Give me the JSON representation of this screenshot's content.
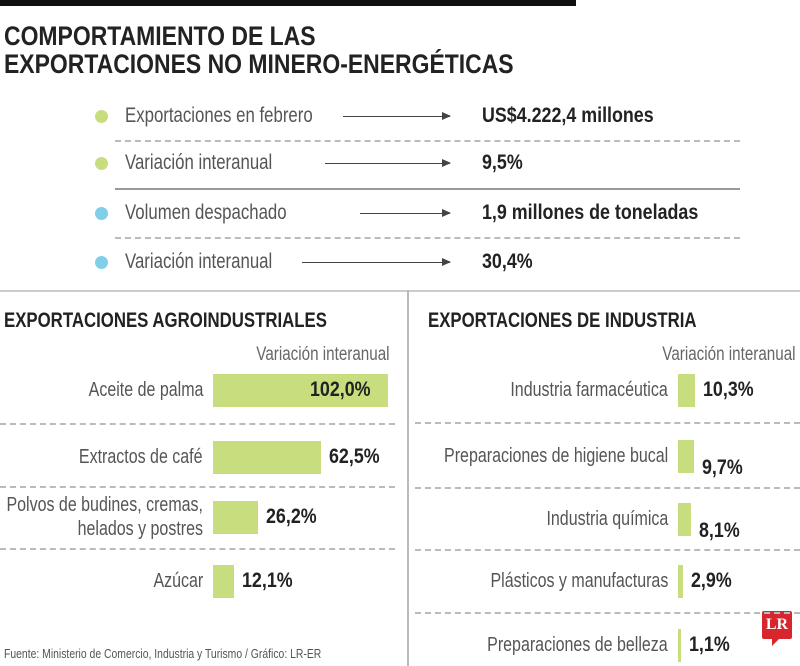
{
  "title_lines": [
    "COMPORTAMIENTO DE LAS",
    "EXPORTACIONES NO MINERO-ENERGÉTICAS"
  ],
  "colors": {
    "green": "#c8de7e",
    "blue": "#7fcfe9",
    "bar": "#c8de7e",
    "logo": "#d8262e"
  },
  "key_facts": [
    {
      "label": "Exportaciones en febrero",
      "value": "US$4.222,4 millones",
      "dot": "green"
    },
    {
      "label": "Variación interanual",
      "value": "9,5%",
      "dot": "green"
    },
    {
      "label": "Volumen despachado",
      "value": "1,9 millones de toneladas",
      "dot": "blue"
    },
    {
      "label": "Variación interanual",
      "value": "30,4%",
      "dot": "blue"
    }
  ],
  "chart_data": [
    {
      "type": "bar",
      "orientation": "horizontal",
      "title": "EXPORTACIONES AGROINDUSTRIALES",
      "subtitle": "Variación interanual",
      "categories": [
        "Aceite de palma",
        "Extractos de café",
        "Polvos de budines, cremas, helados y postres",
        "Azúcar"
      ],
      "values": [
        102.0,
        62.5,
        26.2,
        12.1
      ],
      "labels": [
        "102,0%",
        "62,5%",
        "26,2%",
        "12,1%"
      ]
    },
    {
      "type": "bar",
      "orientation": "horizontal",
      "title": "EXPORTACIONES DE INDUSTRIA",
      "subtitle": "Variación interanual",
      "categories": [
        "Industria farmacéutica",
        "Preparaciones de higiene bucal",
        "Industria química",
        "Plásticos y manufacturas",
        "Preparaciones de belleza"
      ],
      "values": [
        10.3,
        9.7,
        8.1,
        2.9,
        1.1
      ],
      "labels": [
        "10,3%",
        "9,7%",
        "8,1%",
        "2,9%",
        "1,1%"
      ]
    }
  ],
  "source": "Fuente: Ministerio de Comercio, Industria y Turismo / Gráfico: LR-ER",
  "logo": "LR"
}
